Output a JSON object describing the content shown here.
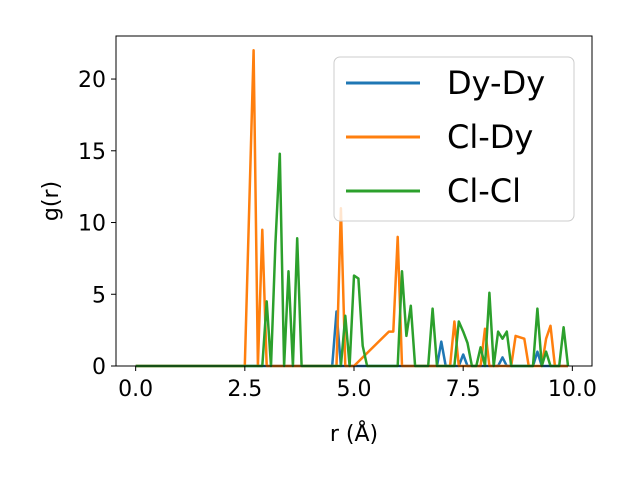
{
  "chart_data": {
    "type": "line",
    "title": "",
    "xlabel": "r (Å)",
    "ylabel": "g(r)",
    "xlim": [
      -0.45,
      10.45
    ],
    "ylim": [
      0,
      23
    ],
    "xticks": [
      0.0,
      2.5,
      5.0,
      7.5,
      10.0
    ],
    "xtick_labels": [
      "0.0",
      "2.5",
      "5.0",
      "7.5",
      "10.0"
    ],
    "yticks": [
      0,
      5,
      10,
      15,
      20
    ],
    "ytick_labels": [
      "0",
      "5",
      "10",
      "15",
      "20"
    ],
    "grid": false,
    "legend_position": "top-right",
    "series": [
      {
        "name": "Dy-Dy",
        "color": "#1f77b4",
        "x": [
          0.0,
          4.5,
          4.6,
          4.7,
          4.8,
          5.8,
          5.9,
          6.0,
          6.1,
          6.2,
          6.3,
          6.4,
          6.5,
          6.6,
          6.7,
          6.8,
          6.9,
          7.0,
          7.1,
          7.2,
          7.3,
          7.4,
          7.5,
          7.6,
          7.7,
          7.8,
          7.9,
          8.0,
          8.1,
          8.2,
          8.3,
          8.4,
          8.5,
          8.6,
          8.7,
          8.8,
          8.9,
          9.0,
          9.1,
          9.2,
          9.3,
          9.4,
          9.5,
          9.6,
          9.7,
          9.8,
          9.9
        ],
        "y": [
          0,
          0,
          3.8,
          0,
          0,
          0,
          0,
          0,
          0,
          0,
          0,
          0,
          0,
          0,
          0,
          0,
          0,
          1.7,
          0,
          0,
          0,
          0,
          0.8,
          0,
          0,
          0,
          0,
          0,
          0,
          0,
          0,
          0.6,
          0,
          0,
          0,
          0,
          0,
          0,
          0,
          1.0,
          0,
          0,
          0,
          0,
          0,
          0,
          0
        ]
      },
      {
        "name": "Cl-Dy",
        "color": "#ff7f0e",
        "x": [
          0.0,
          2.5,
          2.6,
          2.7,
          2.8,
          2.9,
          3.0,
          3.1,
          4.5,
          4.6,
          4.7,
          4.8,
          4.9,
          5.0,
          5.8,
          5.9,
          6.0,
          6.1,
          6.2,
          6.3,
          6.4,
          6.5,
          6.6,
          6.7,
          6.8,
          6.9,
          7.0,
          7.1,
          7.2,
          7.3,
          7.4,
          7.5,
          7.6,
          7.7,
          7.8,
          7.9,
          8.0,
          8.1,
          8.2,
          8.3,
          8.4,
          8.5,
          8.6,
          8.7,
          8.8,
          8.9,
          9.0,
          9.1,
          9.2,
          9.3,
          9.4,
          9.5,
          9.6,
          9.7,
          9.8,
          9.9
        ],
        "y": [
          0,
          0,
          11.0,
          22.0,
          0,
          9.5,
          0,
          0,
          0,
          0,
          11.0,
          0,
          0,
          0,
          2.4,
          2.4,
          9.0,
          0,
          0,
          0,
          0,
          0,
          0,
          0,
          0,
          0,
          0,
          0,
          0,
          3.1,
          0,
          0,
          0,
          0,
          0,
          0,
          2.6,
          0,
          0,
          0,
          0,
          0,
          0,
          2.1,
          2.0,
          1.9,
          0,
          0,
          0,
          0,
          1.9,
          2.8,
          0,
          0,
          0,
          0
        ]
      },
      {
        "name": "Cl-Cl",
        "color": "#2ca02c",
        "x": [
          0.0,
          2.9,
          3.0,
          3.1,
          3.2,
          3.3,
          3.4,
          3.5,
          3.6,
          3.7,
          3.8,
          4.5,
          4.6,
          4.7,
          4.8,
          4.9,
          5.0,
          5.1,
          5.2,
          5.3,
          5.8,
          5.9,
          6.0,
          6.1,
          6.2,
          6.3,
          6.4,
          6.5,
          6.6,
          6.7,
          6.8,
          6.9,
          7.0,
          7.1,
          7.2,
          7.3,
          7.4,
          7.5,
          7.6,
          7.7,
          7.8,
          7.9,
          8.0,
          8.1,
          8.2,
          8.3,
          8.4,
          8.5,
          8.6,
          8.7,
          8.8,
          8.9,
          9.0,
          9.1,
          9.2,
          9.3,
          9.4,
          9.5,
          9.6,
          9.7,
          9.8,
          9.9
        ],
        "y": [
          0,
          0,
          4.5,
          0,
          8.5,
          14.8,
          0,
          6.6,
          0,
          8.9,
          0,
          0,
          0,
          0,
          3.5,
          0,
          6.3,
          6.1,
          1.4,
          0,
          0,
          0,
          0,
          6.6,
          2.1,
          4.2,
          0,
          0,
          0,
          0,
          4.0,
          0,
          0,
          0,
          0,
          0,
          3.1,
          2.4,
          1.6,
          0,
          0,
          1.3,
          0,
          5.1,
          0,
          2.4,
          1.9,
          2.4,
          0,
          0,
          0,
          0,
          0,
          0,
          4.0,
          0,
          1.0,
          0,
          0,
          0,
          2.7,
          0
        ]
      }
    ]
  }
}
